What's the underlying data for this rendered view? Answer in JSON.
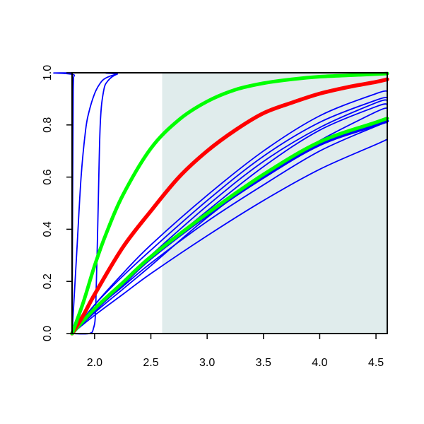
{
  "chart_data": {
    "type": "line",
    "title": "",
    "xlabel": "",
    "ylabel": "",
    "xlim": [
      1.8,
      4.6
    ],
    "ylim": [
      0.0,
      1.0
    ],
    "x_ticks": [
      2.0,
      2.5,
      3.0,
      3.5,
      4.0,
      4.5
    ],
    "x_tick_labels": [
      "2.0",
      "2.5",
      "3.0",
      "3.5",
      "4.0",
      "4.5"
    ],
    "y_ticks": [
      0.0,
      0.2,
      0.4,
      0.6,
      0.8,
      1.0
    ],
    "y_tick_labels": [
      "0.0",
      "0.2",
      "0.4",
      "0.6",
      "0.8",
      "1.0"
    ],
    "grid": false,
    "legend": "none",
    "shaded_region": {
      "x_from": 2.6,
      "x_to": 4.6,
      "color": "#e0ecec"
    },
    "series": [
      {
        "color": "#0000ff",
        "width": 1.8,
        "points": [
          [
            1.8,
            0
          ],
          [
            1.805,
            0.55
          ],
          [
            1.81,
            0.93
          ],
          [
            1.82,
            0.99
          ],
          [
            1.85,
            1.0
          ],
          [
            4.6,
            1.0
          ]
        ]
      },
      {
        "color": "#0000ff",
        "width": 1.8,
        "points": [
          [
            1.8,
            0
          ],
          [
            1.84,
            0.3
          ],
          [
            1.88,
            0.6
          ],
          [
            1.92,
            0.78
          ],
          [
            1.95,
            0.85
          ],
          [
            2.0,
            0.92
          ],
          [
            2.05,
            0.96
          ],
          [
            2.1,
            0.98
          ],
          [
            2.2,
            0.995
          ],
          [
            2.3,
            1.0
          ],
          [
            4.6,
            1.0
          ]
        ]
      },
      {
        "color": "#0000ff",
        "width": 1.8,
        "points": [
          [
            1.8,
            0
          ],
          [
            1.95,
            0.0
          ],
          [
            1.99,
            0.02
          ],
          [
            2.01,
            0.1
          ],
          [
            2.03,
            0.45
          ],
          [
            2.05,
            0.8
          ],
          [
            2.08,
            0.93
          ],
          [
            2.12,
            0.97
          ],
          [
            2.2,
            0.995
          ],
          [
            2.3,
            1.0
          ],
          [
            4.6,
            1.0
          ]
        ]
      },
      {
        "color": "#0000ff",
        "width": 1.8,
        "points": [
          [
            1.8,
            0
          ],
          [
            2.0,
            0.07
          ],
          [
            2.25,
            0.15
          ],
          [
            2.5,
            0.23
          ],
          [
            3.0,
            0.375
          ],
          [
            3.5,
            0.51
          ],
          [
            4.0,
            0.63
          ],
          [
            4.5,
            0.725
          ],
          [
            4.6,
            0.745
          ]
        ]
      },
      {
        "color": "#0000ff",
        "width": 1.8,
        "points": [
          [
            1.8,
            0
          ],
          [
            2.0,
            0.09
          ],
          [
            2.25,
            0.18
          ],
          [
            2.5,
            0.27
          ],
          [
            3.0,
            0.43
          ],
          [
            3.5,
            0.57
          ],
          [
            4.0,
            0.7
          ],
          [
            4.5,
            0.795
          ],
          [
            4.6,
            0.81
          ]
        ]
      },
      {
        "color": "#0000ff",
        "width": 1.8,
        "points": [
          [
            1.8,
            0
          ],
          [
            2.0,
            0.08
          ],
          [
            2.25,
            0.17
          ],
          [
            2.5,
            0.26
          ],
          [
            3.0,
            0.445
          ],
          [
            3.5,
            0.605
          ],
          [
            4.0,
            0.74
          ],
          [
            4.5,
            0.85
          ],
          [
            4.6,
            0.865
          ]
        ]
      },
      {
        "color": "#0000ff",
        "width": 1.8,
        "points": [
          [
            1.8,
            0
          ],
          [
            2.0,
            0.09
          ],
          [
            2.25,
            0.19
          ],
          [
            2.5,
            0.29
          ],
          [
            3.0,
            0.47
          ],
          [
            3.5,
            0.64
          ],
          [
            4.0,
            0.78
          ],
          [
            4.5,
            0.87
          ],
          [
            4.6,
            0.88
          ]
        ]
      },
      {
        "color": "#0000ff",
        "width": 1.8,
        "points": [
          [
            1.8,
            0
          ],
          [
            2.0,
            0.1
          ],
          [
            2.25,
            0.2
          ],
          [
            2.5,
            0.3
          ],
          [
            3.0,
            0.49
          ],
          [
            3.5,
            0.66
          ],
          [
            4.0,
            0.79
          ],
          [
            4.5,
            0.885
          ],
          [
            4.6,
            0.895
          ]
        ]
      },
      {
        "color": "#0000ff",
        "width": 1.8,
        "points": [
          [
            1.8,
            0
          ],
          [
            2.0,
            0.11
          ],
          [
            2.25,
            0.22
          ],
          [
            2.5,
            0.32
          ],
          [
            3.0,
            0.51
          ],
          [
            3.5,
            0.68
          ],
          [
            4.0,
            0.81
          ],
          [
            4.5,
            0.895
          ],
          [
            4.6,
            0.905
          ]
        ]
      },
      {
        "color": "#0000ff",
        "width": 1.8,
        "points": [
          [
            1.8,
            0
          ],
          [
            2.0,
            0.11
          ],
          [
            2.25,
            0.23
          ],
          [
            2.5,
            0.34
          ],
          [
            3.0,
            0.53
          ],
          [
            3.5,
            0.7
          ],
          [
            4.0,
            0.835
          ],
          [
            4.5,
            0.92
          ],
          [
            4.6,
            0.93
          ]
        ]
      },
      {
        "color": "#0000ff",
        "width": 4.5,
        "points": [
          [
            1.8,
            0
          ],
          [
            2.0,
            0.09
          ],
          [
            2.25,
            0.19
          ],
          [
            2.5,
            0.29
          ],
          [
            3.0,
            0.455
          ],
          [
            3.5,
            0.6
          ],
          [
            4.0,
            0.725
          ],
          [
            4.5,
            0.8
          ],
          [
            4.6,
            0.815
          ]
        ]
      },
      {
        "color": "#00ff00",
        "width": 5,
        "points": [
          [
            1.8,
            0
          ],
          [
            2.0,
            0.095
          ],
          [
            2.25,
            0.195
          ],
          [
            2.5,
            0.295
          ],
          [
            3.0,
            0.46
          ],
          [
            3.5,
            0.61
          ],
          [
            4.0,
            0.735
          ],
          [
            4.5,
            0.81
          ],
          [
            4.6,
            0.825
          ]
        ]
      },
      {
        "color": "#ff0000",
        "width": 5.5,
        "points": [
          [
            1.8,
            0
          ],
          [
            1.9,
            0.07
          ],
          [
            2.0,
            0.15
          ],
          [
            2.25,
            0.33
          ],
          [
            2.5,
            0.47
          ],
          [
            2.75,
            0.6
          ],
          [
            3.0,
            0.7
          ],
          [
            3.25,
            0.78
          ],
          [
            3.5,
            0.845
          ],
          [
            3.75,
            0.885
          ],
          [
            4.0,
            0.92
          ],
          [
            4.25,
            0.945
          ],
          [
            4.5,
            0.965
          ],
          [
            4.6,
            0.975
          ]
        ]
      },
      {
        "color": "#00ff00",
        "width": 5,
        "points": [
          [
            1.8,
            0
          ],
          [
            1.9,
            0.12
          ],
          [
            2.0,
            0.26
          ],
          [
            2.1,
            0.38
          ],
          [
            2.25,
            0.53
          ],
          [
            2.5,
            0.71
          ],
          [
            2.75,
            0.82
          ],
          [
            3.0,
            0.89
          ],
          [
            3.25,
            0.935
          ],
          [
            3.5,
            0.96
          ],
          [
            3.75,
            0.975
          ],
          [
            4.0,
            0.985
          ],
          [
            4.25,
            0.99
          ],
          [
            4.5,
            0.995
          ],
          [
            4.6,
            0.997
          ]
        ]
      }
    ]
  }
}
